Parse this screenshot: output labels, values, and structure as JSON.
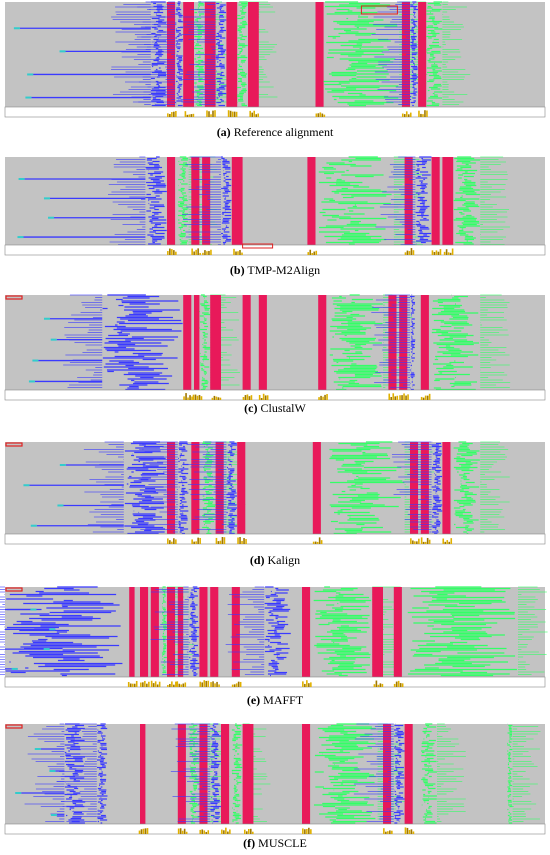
{
  "figure": {
    "panels": [
      {
        "label": "(a)",
        "caption": "Reference alignment"
      },
      {
        "label": "(b)",
        "caption": "TMP-M2Align"
      },
      {
        "label": "(c)",
        "caption": "ClustalW"
      },
      {
        "label": "(d)",
        "caption": "Kalign"
      },
      {
        "label": "(e)",
        "caption": "MAFFT"
      },
      {
        "label": "(f)",
        "caption": "MUSCLE"
      }
    ]
  }
}
